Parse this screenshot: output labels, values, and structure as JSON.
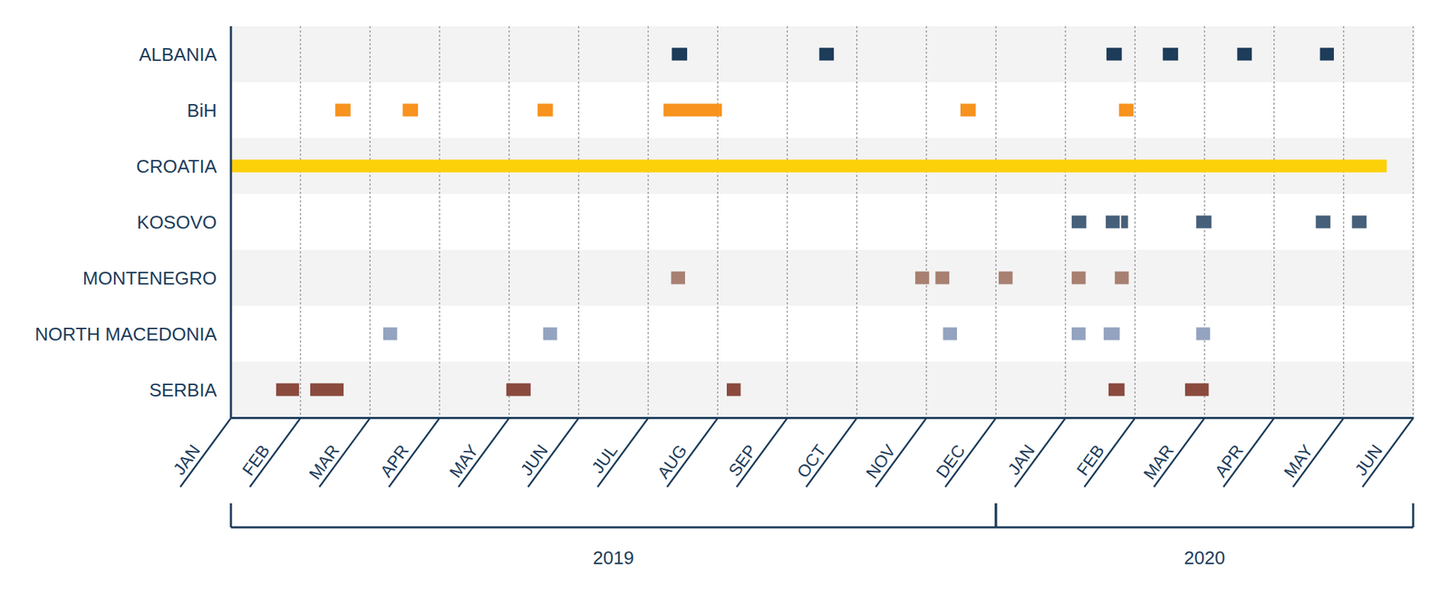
{
  "chart_data": {
    "type": "timeline",
    "categories": [
      "ALBANIA",
      "BiH",
      "CROATIA",
      "KOSOVO",
      "MONTENEGRO",
      "NORTH MACEDONIA",
      "SERBIA"
    ],
    "series": [
      {
        "color": "#1d3c5a",
        "values": [
          [
            6.34,
            6.56
          ],
          [
            8.46,
            8.67
          ],
          [
            12.59,
            12.81
          ],
          [
            13.4,
            13.62
          ],
          [
            14.47,
            14.68
          ],
          [
            15.66,
            15.86
          ]
        ]
      },
      {
        "color": "#f7931e",
        "values": [
          [
            1.5,
            1.72
          ],
          [
            2.47,
            2.69
          ],
          [
            4.41,
            4.63
          ],
          [
            6.22,
            7.06
          ],
          [
            10.49,
            10.71
          ],
          [
            12.77,
            12.98
          ]
        ]
      },
      {
        "color": "#fdd10a",
        "values": [
          [
            0,
            16.62
          ]
        ]
      },
      {
        "color": "#46607a",
        "values": [
          [
            12.09,
            12.3
          ],
          [
            12.58,
            12.78
          ],
          [
            12.8,
            12.9
          ],
          [
            13.88,
            14.1
          ],
          [
            15.6,
            15.81
          ],
          [
            16.12,
            16.33
          ]
        ]
      },
      {
        "color": "#a88072",
        "values": [
          [
            6.33,
            6.53
          ],
          [
            9.84,
            10.04
          ],
          [
            10.13,
            10.33
          ],
          [
            11.04,
            11.24
          ],
          [
            12.09,
            12.29
          ],
          [
            12.71,
            12.91
          ]
        ]
      },
      {
        "color": "#94a3bf",
        "values": [
          [
            2.19,
            2.39
          ],
          [
            4.49,
            4.69
          ],
          [
            10.24,
            10.44
          ],
          [
            12.09,
            12.29
          ],
          [
            12.55,
            12.78
          ],
          [
            13.88,
            14.08
          ]
        ]
      },
      {
        "color": "#8b4a3e",
        "values": [
          [
            0.65,
            0.98
          ],
          [
            1.14,
            1.62
          ],
          [
            3.96,
            4.31
          ],
          [
            7.13,
            7.33
          ],
          [
            12.62,
            12.85
          ],
          [
            13.72,
            14.06
          ]
        ]
      }
    ],
    "xlim": [
      0,
      17
    ],
    "xticks": [
      {
        "value": 0,
        "label": "JAN"
      },
      {
        "value": 1,
        "label": "FEB"
      },
      {
        "value": 2,
        "label": "MAR"
      },
      {
        "value": 3,
        "label": "APR"
      },
      {
        "value": 4,
        "label": "MAY"
      },
      {
        "value": 5,
        "label": "JUN"
      },
      {
        "value": 6,
        "label": "JUL"
      },
      {
        "value": 7,
        "label": "AUG"
      },
      {
        "value": 8,
        "label": "SEP"
      },
      {
        "value": 9,
        "label": "OCT"
      },
      {
        "value": 10,
        "label": "NOV"
      },
      {
        "value": 11,
        "label": "DEC"
      },
      {
        "value": 12,
        "label": "JAN"
      },
      {
        "value": 13,
        "label": "FEB"
      },
      {
        "value": 14,
        "label": "MAR"
      },
      {
        "value": 15,
        "label": "APR"
      },
      {
        "value": 16,
        "label": "MAY"
      },
      {
        "value": 17,
        "label": "JUN"
      }
    ],
    "groups": [
      {
        "label": "2019",
        "from": 0,
        "to": 11
      },
      {
        "label": "2020",
        "from": 11,
        "to": 17
      }
    ],
    "grid": true
  }
}
